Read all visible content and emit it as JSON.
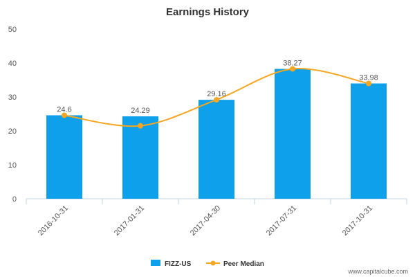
{
  "chart_data": {
    "type": "bar",
    "title": "Earnings History",
    "categories": [
      "2016-10-31",
      "2017-01-31",
      "2017-04-30",
      "2017-07-31",
      "2017-10-31"
    ],
    "series": [
      {
        "name": "FIZZ-US",
        "kind": "bar",
        "color": "#0ea0ea",
        "values": [
          24.6,
          24.29,
          29.16,
          38.27,
          33.98
        ]
      },
      {
        "name": "Peer Median",
        "kind": "line",
        "color": "#f5a623",
        "values": [
          24.6,
          21.5,
          29.16,
          38.27,
          33.98
        ]
      }
    ],
    "data_labels": [
      "24.6",
      "24.29",
      "29.16",
      "38.27",
      "33.98"
    ],
    "ylim": [
      0,
      50
    ],
    "yticks": [
      0,
      10,
      20,
      30,
      40,
      50
    ],
    "xlabel": "",
    "ylabel": "",
    "legend": "bottom-center"
  },
  "watermark": "www.capitalcube.com"
}
